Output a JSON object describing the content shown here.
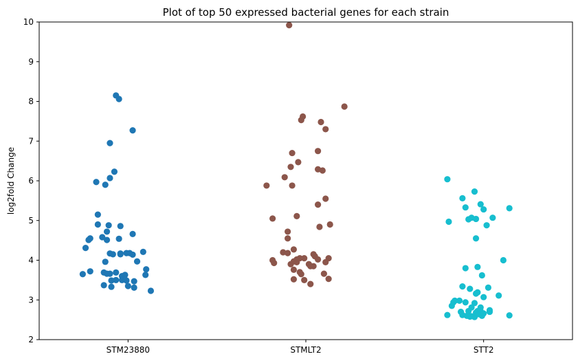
{
  "chart_data": {
    "type": "scatter",
    "title": "Plot of top 50 expressed bacterial genes for each strain",
    "xlabel": "",
    "ylabel": "log2fold Change",
    "ylim": [
      2,
      10
    ],
    "yticks": [
      2,
      3,
      4,
      5,
      6,
      7,
      8,
      9,
      10
    ],
    "categories": [
      "STM23880",
      "STMLT2",
      "STT2"
    ],
    "grid": false,
    "legend": "none",
    "series": [
      {
        "category": "STM23880",
        "color": "#1f77b4",
        "points": [
          [
            -0.068,
            8.15
          ],
          [
            -0.051,
            8.06
          ],
          [
            0.026,
            7.27
          ],
          [
            -0.102,
            6.95
          ],
          [
            -0.077,
            6.23
          ],
          [
            -0.102,
            6.07
          ],
          [
            -0.179,
            5.97
          ],
          [
            -0.128,
            5.9
          ],
          [
            -0.17,
            5.15
          ],
          [
            -0.109,
            4.88
          ],
          [
            -0.043,
            4.86
          ],
          [
            -0.17,
            4.9
          ],
          [
            -0.145,
            4.58
          ],
          [
            -0.119,
            4.72
          ],
          [
            -0.213,
            4.55
          ],
          [
            -0.222,
            4.51
          ],
          [
            -0.119,
            4.51
          ],
          [
            -0.051,
            4.54
          ],
          [
            0.026,
            4.66
          ],
          [
            -0.239,
            4.31
          ],
          [
            -0.102,
            4.17
          ],
          [
            -0.085,
            4.15
          ],
          [
            -0.043,
            4.15
          ],
          [
            -0.043,
            4.17
          ],
          [
            -0.009,
            4.18
          ],
          [
            0.009,
            4.18
          ],
          [
            0.026,
            4.14
          ],
          [
            0.085,
            4.21
          ],
          [
            -0.128,
            3.96
          ],
          [
            0.051,
            3.97
          ],
          [
            0.102,
            3.77
          ],
          [
            -0.136,
            3.69
          ],
          [
            -0.119,
            3.66
          ],
          [
            -0.102,
            3.66
          ],
          [
            -0.255,
            3.65
          ],
          [
            -0.213,
            3.72
          ],
          [
            -0.068,
            3.69
          ],
          [
            -0.034,
            3.6
          ],
          [
            -0.017,
            3.63
          ],
          [
            0.098,
            3.63
          ],
          [
            -0.034,
            3.5
          ],
          [
            -0.068,
            3.5
          ],
          [
            -0.009,
            3.49
          ],
          [
            -0.094,
            3.49
          ],
          [
            0.034,
            3.47
          ],
          [
            -0.136,
            3.37
          ],
          [
            -0.094,
            3.33
          ],
          [
            0.0,
            3.35
          ],
          [
            0.034,
            3.31
          ],
          [
            0.128,
            3.23
          ]
        ]
      },
      {
        "category": "STMLT2",
        "color": "#8c564b",
        "points": [
          [
            -0.094,
            9.92
          ],
          [
            0.217,
            7.87
          ],
          [
            -0.017,
            7.62
          ],
          [
            -0.026,
            7.53
          ],
          [
            0.085,
            7.48
          ],
          [
            0.111,
            7.3
          ],
          [
            0.068,
            6.75
          ],
          [
            -0.077,
            6.7
          ],
          [
            -0.043,
            6.47
          ],
          [
            -0.085,
            6.35
          ],
          [
            0.068,
            6.29
          ],
          [
            0.094,
            6.26
          ],
          [
            -0.119,
            6.09
          ],
          [
            -0.221,
            5.88
          ],
          [
            -0.077,
            5.88
          ],
          [
            0.111,
            5.55
          ],
          [
            0.068,
            5.4
          ],
          [
            -0.051,
            5.11
          ],
          [
            -0.187,
            5.05
          ],
          [
            0.136,
            4.9
          ],
          [
            0.077,
            4.84
          ],
          [
            -0.102,
            4.72
          ],
          [
            -0.102,
            4.55
          ],
          [
            -0.068,
            4.27
          ],
          [
            -0.128,
            4.2
          ],
          [
            -0.102,
            4.18
          ],
          [
            -0.187,
            4.0
          ],
          [
            -0.179,
            3.93
          ],
          [
            -0.051,
            4.02
          ],
          [
            -0.034,
            4.05
          ],
          [
            -0.009,
            4.05
          ],
          [
            0.043,
            4.15
          ],
          [
            0.051,
            4.1
          ],
          [
            0.068,
            4.02
          ],
          [
            0.128,
            4.05
          ],
          [
            -0.085,
            3.9
          ],
          [
            -0.068,
            3.97
          ],
          [
            -0.051,
            3.95
          ],
          [
            0.017,
            3.9
          ],
          [
            0.043,
            3.85
          ],
          [
            0.111,
            3.95
          ],
          [
            -0.068,
            3.76
          ],
          [
            -0.034,
            3.7
          ],
          [
            -0.026,
            3.65
          ],
          [
            0.026,
            3.85
          ],
          [
            0.102,
            3.66
          ],
          [
            -0.068,
            3.52
          ],
          [
            -0.009,
            3.5
          ],
          [
            0.026,
            3.4
          ],
          [
            0.128,
            3.53
          ]
        ]
      },
      {
        "category": "STT2",
        "color": "#17becf",
        "points": [
          [
            -0.204,
            6.04
          ],
          [
            -0.051,
            5.73
          ],
          [
            -0.119,
            5.56
          ],
          [
            -0.017,
            5.41
          ],
          [
            -0.102,
            5.33
          ],
          [
            0.0,
            5.28
          ],
          [
            0.145,
            5.31
          ],
          [
            -0.196,
            4.97
          ],
          [
            -0.085,
            5.03
          ],
          [
            -0.068,
            5.07
          ],
          [
            -0.043,
            5.04
          ],
          [
            0.051,
            5.07
          ],
          [
            0.017,
            4.88
          ],
          [
            -0.043,
            4.55
          ],
          [
            0.111,
            4.0
          ],
          [
            -0.034,
            3.83
          ],
          [
            -0.102,
            3.8
          ],
          [
            -0.009,
            3.62
          ],
          [
            -0.119,
            3.34
          ],
          [
            -0.077,
            3.28
          ],
          [
            0.026,
            3.31
          ],
          [
            -0.034,
            3.19
          ],
          [
            -0.043,
            3.16
          ],
          [
            0.085,
            3.11
          ],
          [
            0.0,
            3.07
          ],
          [
            -0.162,
            2.98
          ],
          [
            -0.17,
            2.94
          ],
          [
            -0.136,
            2.98
          ],
          [
            -0.102,
            2.94
          ],
          [
            -0.051,
            2.92
          ],
          [
            -0.179,
            2.85
          ],
          [
            -0.128,
            2.7
          ],
          [
            -0.017,
            2.81
          ],
          [
            -0.068,
            2.81
          ],
          [
            -0.034,
            2.72
          ],
          [
            0.034,
            2.74
          ],
          [
            0.034,
            2.7
          ],
          [
            -0.085,
            2.72
          ],
          [
            -0.043,
            2.68
          ],
          [
            -0.017,
            2.72
          ],
          [
            -0.204,
            2.62
          ],
          [
            -0.119,
            2.62
          ],
          [
            -0.094,
            2.6
          ],
          [
            -0.077,
            2.58
          ],
          [
            -0.051,
            2.57
          ],
          [
            -0.068,
            2.59
          ],
          [
            -0.009,
            2.6
          ],
          [
            -0.026,
            2.64
          ],
          [
            0.0,
            2.66
          ],
          [
            0.145,
            2.61
          ]
        ]
      }
    ]
  }
}
